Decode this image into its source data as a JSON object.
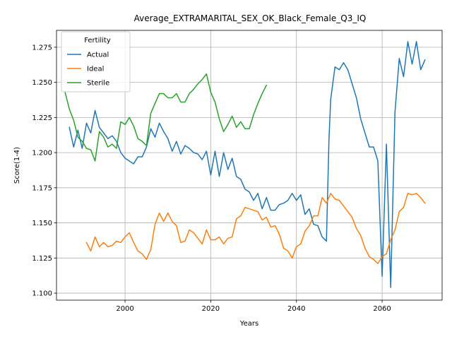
{
  "chart_data": {
    "type": "line",
    "title": "Average_EXTRAMARITAL_SEX_OK_Black_Female_Q3_IQ",
    "xlabel": "Years",
    "ylabel": "Score(1-4)",
    "xlim": [
      1984,
      2074
    ],
    "ylim": [
      1.095,
      1.287
    ],
    "xticks": [
      2000,
      2020,
      2040,
      2060
    ],
    "yticks": [
      1.1,
      1.125,
      1.15,
      1.175,
      1.2,
      1.225,
      1.25,
      1.275
    ],
    "ytick_labels": [
      "1.100",
      "1.125",
      "1.150",
      "1.175",
      "1.200",
      "1.225",
      "1.250",
      "1.275"
    ],
    "grid": true,
    "legend": {
      "title": "Fertility",
      "placement": "upper-left"
    },
    "colors": {
      "Actual": "#1f77b4",
      "Ideal": "#ff7f0e",
      "Sterile": "#2ca02c"
    },
    "series": [
      {
        "name": "Actual",
        "x": [
          1987,
          1988,
          1989,
          1990,
          1991,
          1992,
          1993,
          1994,
          1995,
          1996,
          1997,
          1998,
          1999,
          2000,
          2001,
          2002,
          2003,
          2004,
          2005,
          2006,
          2007,
          2008,
          2009,
          2010,
          2011,
          2012,
          2013,
          2014,
          2015,
          2016,
          2017,
          2018,
          2019,
          2020,
          2021,
          2022,
          2023,
          2024,
          2025,
          2026,
          2027,
          2028,
          2029,
          2030,
          2031,
          2032,
          2033,
          2034,
          2035,
          2036,
          2037,
          2038,
          2039,
          2040,
          2041,
          2042,
          2043,
          2044,
          2045,
          2046,
          2047,
          2047.6,
          2048,
          2049,
          2050,
          2051,
          2052,
          2053,
          2054,
          2055,
          2056,
          2057,
          2058,
          2059,
          2060,
          2061,
          2062,
          2063,
          2064,
          2065,
          2066,
          2067,
          2068,
          2069,
          2070
        ],
        "y": [
          1.218,
          1.204,
          1.216,
          1.203,
          1.221,
          1.214,
          1.23,
          1.218,
          1.214,
          1.21,
          1.212,
          1.208,
          1.2,
          1.196,
          1.194,
          1.192,
          1.197,
          1.197,
          1.204,
          1.217,
          1.211,
          1.221,
          1.215,
          1.21,
          1.201,
          1.208,
          1.199,
          1.205,
          1.203,
          1.2,
          1.199,
          1.195,
          1.201,
          1.184,
          1.201,
          1.183,
          1.2,
          1.188,
          1.196,
          1.183,
          1.181,
          1.174,
          1.172,
          1.166,
          1.171,
          1.16,
          1.168,
          1.159,
          1.159,
          1.163,
          1.164,
          1.166,
          1.171,
          1.166,
          1.17,
          1.156,
          1.16,
          1.149,
          1.148,
          1.14,
          1.137,
          1.21,
          1.238,
          1.261,
          1.259,
          1.264,
          1.259,
          1.249,
          1.239,
          1.224,
          1.214,
          1.204,
          1.204,
          1.194,
          1.112,
          1.206,
          1.104,
          1.229,
          1.267,
          1.254,
          1.279,
          1.263,
          1.279,
          1.259,
          1.266
        ]
      },
      {
        "name": "Ideal",
        "x": [
          1991,
          1992,
          1993,
          1994,
          1995,
          1996,
          1997,
          1998,
          1999,
          2000,
          2001,
          2002,
          2003,
          2004,
          2005,
          2006,
          2007,
          2008,
          2009,
          2010,
          2011,
          2012,
          2013,
          2014,
          2015,
          2016,
          2017,
          2018,
          2019,
          2020,
          2021,
          2022,
          2023,
          2024,
          2025,
          2026,
          2027,
          2028,
          2029,
          2030,
          2031,
          2032,
          2033,
          2034,
          2035,
          2036,
          2037,
          2038,
          2039,
          2040,
          2041,
          2042,
          2043,
          2044,
          2045,
          2046,
          2047,
          2048,
          2049,
          2050,
          2051,
          2052,
          2053,
          2054,
          2055,
          2056,
          2057,
          2058,
          2059,
          2060,
          2061,
          2062,
          2063,
          2064,
          2065,
          2066,
          2067,
          2068,
          2069,
          2070
        ],
        "y": [
          1.136,
          1.13,
          1.14,
          1.133,
          1.136,
          1.133,
          1.134,
          1.137,
          1.136,
          1.14,
          1.143,
          1.136,
          1.13,
          1.128,
          1.124,
          1.131,
          1.149,
          1.157,
          1.151,
          1.157,
          1.151,
          1.148,
          1.136,
          1.137,
          1.145,
          1.143,
          1.139,
          1.135,
          1.145,
          1.138,
          1.138,
          1.14,
          1.135,
          1.139,
          1.14,
          1.153,
          1.155,
          1.161,
          1.16,
          1.159,
          1.158,
          1.152,
          1.154,
          1.147,
          1.148,
          1.142,
          1.132,
          1.13,
          1.125,
          1.133,
          1.135,
          1.144,
          1.148,
          1.155,
          1.155,
          1.168,
          1.164,
          1.171,
          1.167,
          1.166,
          1.162,
          1.158,
          1.154,
          1.146,
          1.141,
          1.132,
          1.126,
          1.124,
          1.121,
          1.126,
          1.128,
          1.138,
          1.145,
          1.158,
          1.161,
          1.171,
          1.17,
          1.171,
          1.168,
          1.164
        ]
      },
      {
        "name": "Sterile",
        "x": [
          1986,
          1987,
          1988,
          1989,
          1990,
          1991,
          1992,
          1993,
          1994,
          1995,
          1996,
          1997,
          1998,
          1999,
          2000,
          2001,
          2002,
          2003,
          2004,
          2005,
          2006,
          2007,
          2008,
          2009,
          2010,
          2011,
          2012,
          2013,
          2014,
          2015,
          2016,
          2017,
          2018,
          2019,
          2020,
          2021,
          2022,
          2023,
          2024,
          2025,
          2026,
          2027,
          2028,
          2029,
          2030,
          2031,
          2032,
          2033
        ],
        "y": [
          1.243,
          1.231,
          1.223,
          1.211,
          1.208,
          1.203,
          1.202,
          1.194,
          1.215,
          1.211,
          1.204,
          1.206,
          1.203,
          1.222,
          1.22,
          1.225,
          1.219,
          1.21,
          1.208,
          1.205,
          1.228,
          1.235,
          1.242,
          1.242,
          1.239,
          1.239,
          1.242,
          1.236,
          1.236,
          1.242,
          1.245,
          1.249,
          1.252,
          1.256,
          1.243,
          1.236,
          1.224,
          1.215,
          1.22,
          1.226,
          1.218,
          1.222,
          1.217,
          1.217,
          1.227,
          1.235,
          1.242,
          1.248
        ]
      }
    ]
  }
}
